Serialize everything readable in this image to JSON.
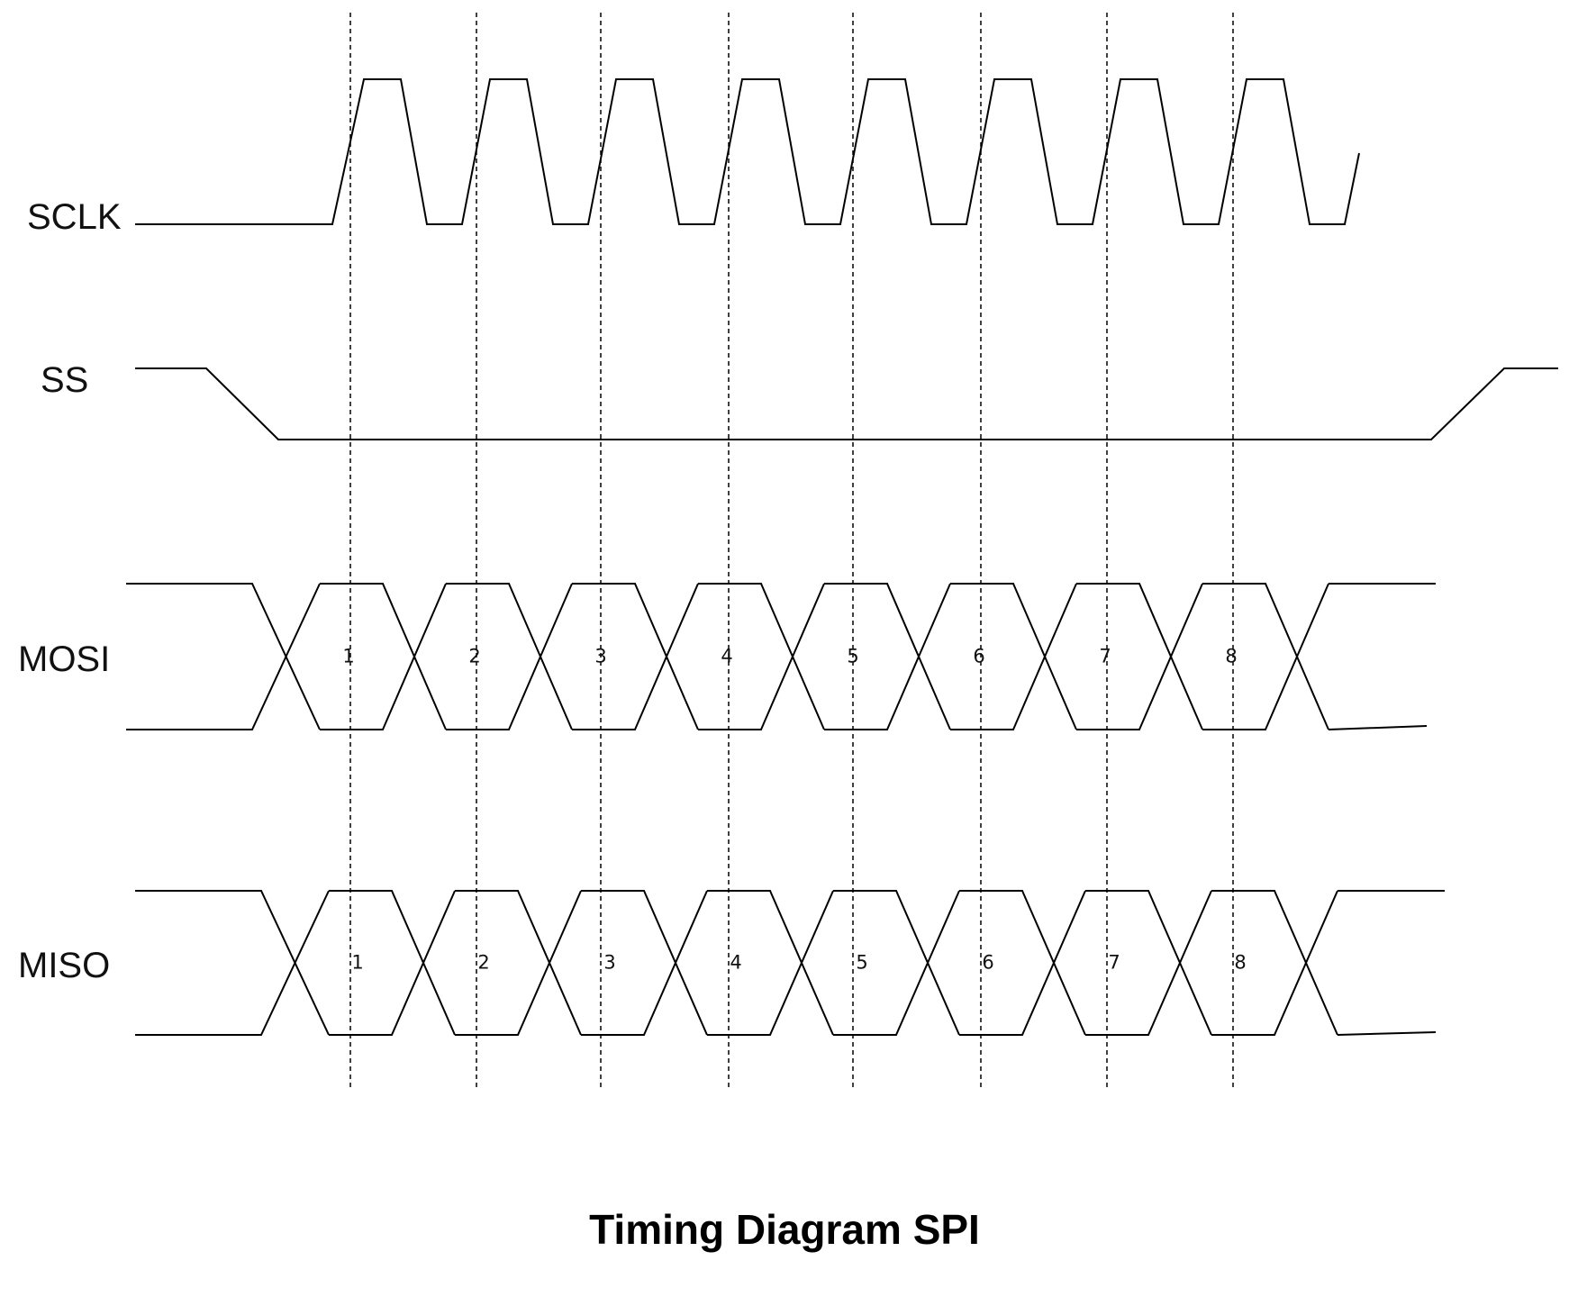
{
  "title": "Timing Diagram SPI",
  "signals": {
    "sclk": "SCLK",
    "ss": "SS",
    "mosi": "MOSI",
    "miso": "MISO"
  },
  "mosi_bits": [
    "1",
    "2",
    "3",
    "4",
    "5",
    "6",
    "7",
    "8"
  ],
  "miso_bits": [
    "1",
    "2",
    "3",
    "4",
    "5",
    "6",
    "7",
    "8"
  ],
  "colors": {
    "line": "#000000",
    "text": "#111111",
    "background": "#ffffff"
  }
}
